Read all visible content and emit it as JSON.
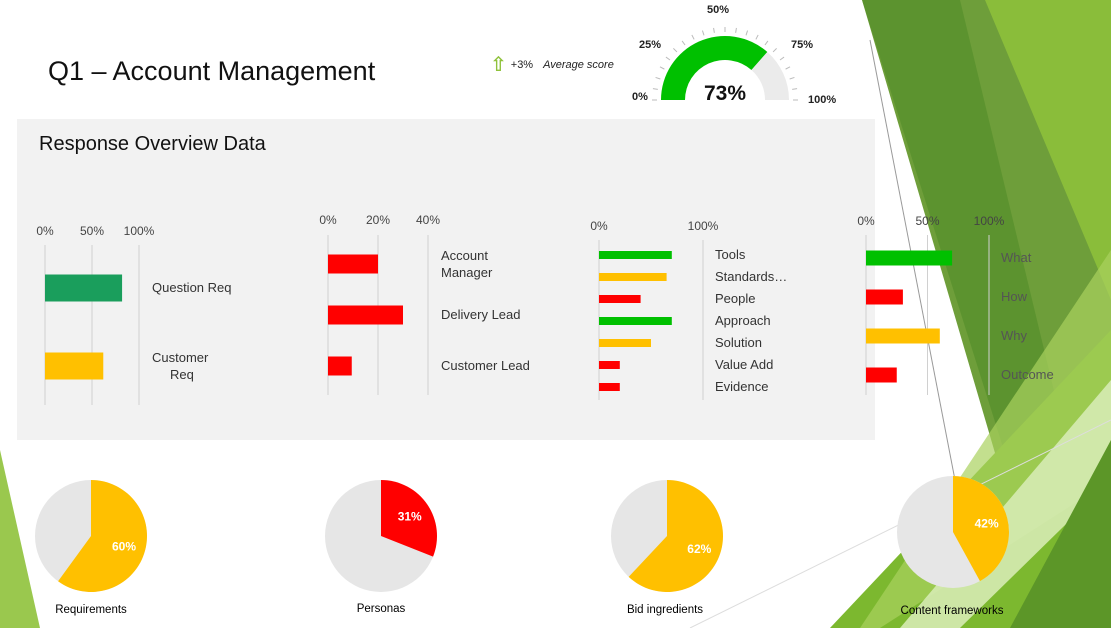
{
  "header": {
    "title": "Q1 – Account Management",
    "trend_delta": "+3%",
    "trend_label": "Average score"
  },
  "colors": {
    "green": "#00c000",
    "teal": "#1a9e5c",
    "amber": "#ffc000",
    "red": "#ff0000",
    "gray": "#e6e6e6",
    "panel": "#f2f2f2",
    "deco_green": "#7cb82f"
  },
  "panel": {
    "title": "Response Overview Data"
  },
  "chart_data": [
    {
      "type": "gauge",
      "value": 73,
      "value_label": "73%",
      "ticks": [
        "0%",
        "25%",
        "50%",
        "75%",
        "100%"
      ],
      "range": [
        0,
        100
      ]
    },
    {
      "type": "bar",
      "orientation": "horizontal",
      "categories": [
        "Question Req",
        "Customer\nReq"
      ],
      "values": [
        82,
        62
      ],
      "colors": [
        "#1a9e5c",
        "#ffc000"
      ],
      "xlim": [
        0,
        100
      ],
      "ticks": [
        "0%",
        "50%",
        "100%"
      ],
      "label_side": "right"
    },
    {
      "type": "bar",
      "orientation": "horizontal",
      "categories": [
        "Account\nManager",
        "Delivery Lead",
        "Customer Lead"
      ],
      "values": [
        20,
        30,
        9.5
      ],
      "colors": [
        "#ff0000",
        "#ff0000",
        "#ff0000"
      ],
      "xlim": [
        0,
        40
      ],
      "ticks": [
        "0%",
        "20%",
        "40%"
      ],
      "label_side": "right"
    },
    {
      "type": "bar",
      "orientation": "horizontal",
      "categories": [
        "Tools",
        "Standards…",
        "People",
        "Approach",
        "Solution",
        "Value Add",
        "Evidence"
      ],
      "values": [
        70,
        65,
        40,
        70,
        50,
        20,
        20
      ],
      "colors": [
        "#00c000",
        "#ffc000",
        "#ff0000",
        "#00c000",
        "#ffc000",
        "#ff0000",
        "#ff0000"
      ],
      "xlim": [
        0,
        100
      ],
      "ticks": [
        "0%",
        "100%"
      ],
      "label_side": "right"
    },
    {
      "type": "bar",
      "orientation": "horizontal",
      "categories": [
        "What",
        "How",
        "Why",
        "Outcome"
      ],
      "values": [
        70,
        30,
        60,
        25
      ],
      "colors": [
        "#00c000",
        "#ff0000",
        "#ffc000",
        "#ff0000"
      ],
      "xlim": [
        0,
        100
      ],
      "ticks": [
        "0%",
        "50%",
        "100%"
      ],
      "label_side": "right"
    },
    {
      "type": "pie",
      "title": "Requirements",
      "value": 60,
      "value_label": "60%",
      "color": "#ffc000"
    },
    {
      "type": "pie",
      "title": "Personas",
      "value": 31,
      "value_label": "31%",
      "color": "#ff0000"
    },
    {
      "type": "pie",
      "title": "Bid ingredients",
      "value": 62,
      "value_label": "62%",
      "color": "#ffc000"
    },
    {
      "type": "pie",
      "title": "Content frameworks",
      "value": 42,
      "value_label": "42%",
      "color": "#ffc000"
    }
  ]
}
